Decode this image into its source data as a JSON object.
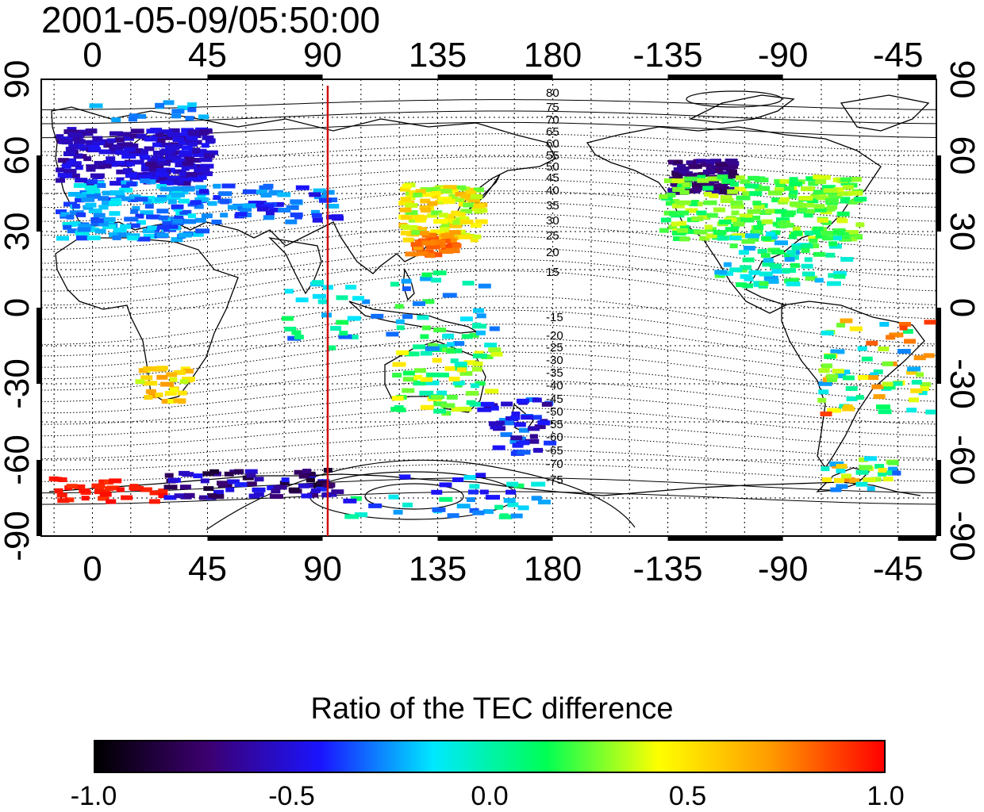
{
  "title": "2001-05-09/05:50:00",
  "axes": {
    "top_ticks": [
      "0",
      "45",
      "90",
      "135",
      "180",
      "-135",
      "-90",
      "-45"
    ],
    "bottom_ticks": [
      "0",
      "45",
      "90",
      "135",
      "180",
      "-135",
      "-90",
      "-45"
    ],
    "left_ticks": [
      "90",
      "60",
      "30",
      "0",
      "-30",
      "-60",
      "-90"
    ],
    "right_ticks": [
      "90",
      "60",
      "30",
      "0",
      "-30",
      "-60",
      "-90"
    ],
    "lon_values": [
      0,
      45,
      90,
      135,
      180,
      225,
      270,
      315
    ],
    "lat_values": [
      90,
      60,
      30,
      0,
      -30,
      -60,
      -90
    ],
    "lon_range": [
      -20,
      330
    ],
    "lat_range": [
      -90,
      90
    ]
  },
  "marker_line_longitude": 92,
  "contour_labels_north": [
    "80",
    "75",
    "70",
    "65",
    "60",
    "55",
    "50",
    "45",
    "40",
    "35",
    "30",
    "25",
    "20",
    "15"
  ],
  "contour_labels_south": [
    "-15",
    "-20",
    "-25",
    "-30",
    "-35",
    "-40",
    "-45",
    "-50",
    "-55",
    "-60",
    "-65",
    "-70",
    "-75"
  ],
  "colorbar": {
    "title": "Ratio of the TEC difference",
    "tick_labels": [
      "-1.0",
      "-0.5",
      "0.0",
      "0.5",
      "1.0"
    ],
    "min": -1.0,
    "max": 1.0,
    "colors": [
      "#000000",
      "#3c0070",
      "#1a14ff",
      "#00e8ff",
      "#00ff55",
      "#ffff00",
      "#ff9a00",
      "#ff0000"
    ]
  },
  "colors": {
    "marker_line": "#d01010",
    "coastline": "#000000",
    "grid": "#000000"
  }
}
